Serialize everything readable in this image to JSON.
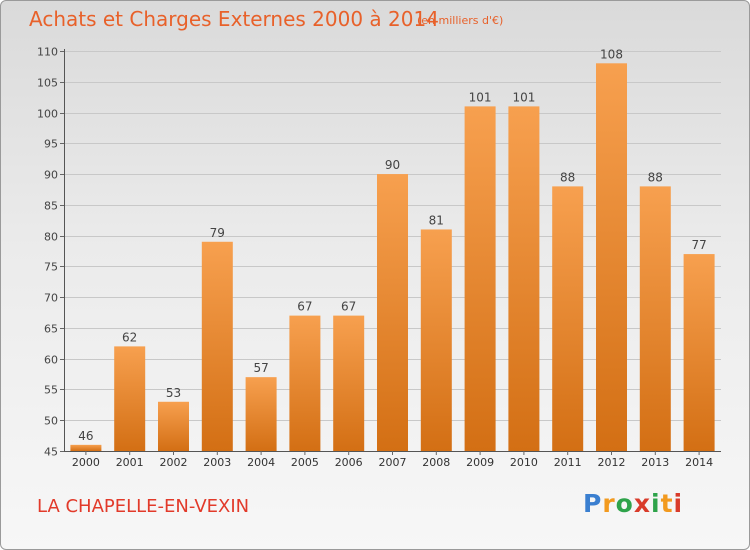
{
  "header": {
    "title": "Achats et Charges Externes 2000 à 2014",
    "subtitle": "(en milliers d'€)"
  },
  "footer": {
    "city": "LA CHAPELLE-EN-VEXIN",
    "logo_text": "Proxiti"
  },
  "colors": {
    "bar_top": "#f7a04f",
    "bar_bottom": "#d36f14",
    "title": "#e8612a",
    "city": "#e23a2a",
    "logo": [
      "#3a7fd0",
      "#f29a1f",
      "#2ea34a",
      "#d93b2a",
      "#2ea34a",
      "#f29a1f",
      "#d93b2a"
    ]
  },
  "chart_data": {
    "type": "bar",
    "categories": [
      "2000",
      "2001",
      "2002",
      "2003",
      "2004",
      "2005",
      "2006",
      "2007",
      "2008",
      "2009",
      "2010",
      "2011",
      "2012",
      "2013",
      "2014"
    ],
    "values": [
      46,
      62,
      53,
      79,
      57,
      67,
      67,
      90,
      81,
      101,
      101,
      88,
      108,
      88,
      77
    ],
    "data_labels": [
      "46",
      "62",
      "53",
      "79",
      "57",
      "67",
      "67",
      "90",
      "81",
      "101",
      "101",
      "88",
      "108",
      "88",
      "77"
    ],
    "title": "Achats et Charges Externes 2000 à 2014",
    "ylim": [
      45,
      110
    ],
    "yticks": [
      45,
      50,
      55,
      60,
      65,
      70,
      75,
      80,
      85,
      90,
      95,
      100,
      105,
      110
    ],
    "ytick_labels": [
      "45",
      "50",
      "55",
      "60",
      "65",
      "70",
      "75",
      "80",
      "85",
      "90",
      "95",
      "100",
      "105",
      "110"
    ],
    "grid": true
  }
}
